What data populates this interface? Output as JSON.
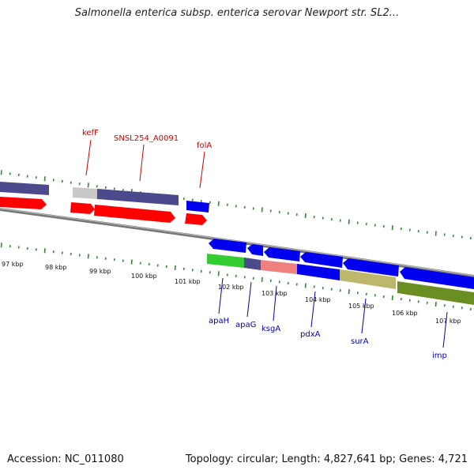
{
  "title": "Salmonella enterica subsp. enterica serovar Newport str. SL2...",
  "footer": {
    "accession": "Accession: NC_011080",
    "summary": "Topology: circular; Length: 4,827,641 bp; Genes: 4,721"
  },
  "axis_labels": [
    "97 kbp",
    "98 kbp",
    "99 kbp",
    "100 kbp",
    "101 kbp",
    "102 kbp",
    "103 kbp",
    "104 kbp",
    "105 kbp",
    "106 kbp",
    "107 kbp"
  ],
  "gene_labels_top": [
    "kefF",
    "SNSL254_A0091",
    "folA"
  ],
  "gene_labels_bottom": [
    "apaH",
    "apaG",
    "ksgA",
    "pdxA",
    "surA",
    "imp"
  ],
  "colors": {
    "red": "#ff0000",
    "blue": "#0000ee",
    "slate": "#4a4a8c",
    "gray": "#c8c8c8",
    "green": "#33cc33",
    "salmon": "#f08080",
    "khaki": "#bdb76b",
    "olive": "#6b8e23",
    "tick": "#2e8b2e",
    "label_red": "#cc0000",
    "label_blue": "#0000aa"
  }
}
